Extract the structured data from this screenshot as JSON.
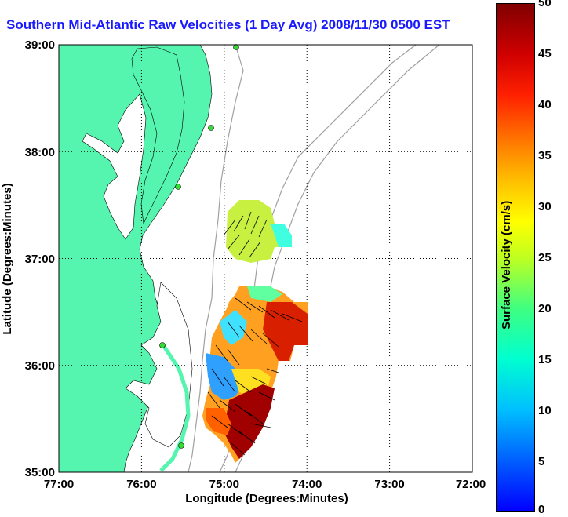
{
  "title": "Southern Mid-Atlantic Raw Velocities (1 Day Avg) 2008/11/30 0500 EST",
  "axes": {
    "xlabel": "Longitude (Degrees:Minutes)",
    "ylabel": "Latitude (Degrees:Minutes)",
    "xticks": [
      "77:00",
      "76:00",
      "75:00",
      "74:00",
      "73:00",
      "72:00"
    ],
    "yticks": [
      "39:00",
      "38:00",
      "37:00",
      "36:00",
      "35:00"
    ]
  },
  "colorbar": {
    "label": "Surface Velocity (cm/s)",
    "ticks": [
      "50",
      "45",
      "40",
      "35",
      "30",
      "25",
      "20",
      "15",
      "10",
      "5",
      "0"
    ],
    "range": [
      0,
      50
    ]
  },
  "colors": {
    "land": "#55f5b0",
    "water": "#ffffff",
    "bathymetry": "#a0a0a0",
    "title": "#1a1aff",
    "station": "#33dd33"
  },
  "map_extent": {
    "lon": [
      -77,
      -72
    ],
    "lat": [
      35,
      39
    ]
  },
  "stations": [
    {
      "lon": -75.1,
      "lat": 38.97
    },
    {
      "lon": -75.15,
      "lat": 38.22
    },
    {
      "lon": -75.55,
      "lat": 37.6
    },
    {
      "lon": -75.7,
      "lat": 36.2
    },
    {
      "lon": -75.45,
      "lat": 35.27
    }
  ]
}
